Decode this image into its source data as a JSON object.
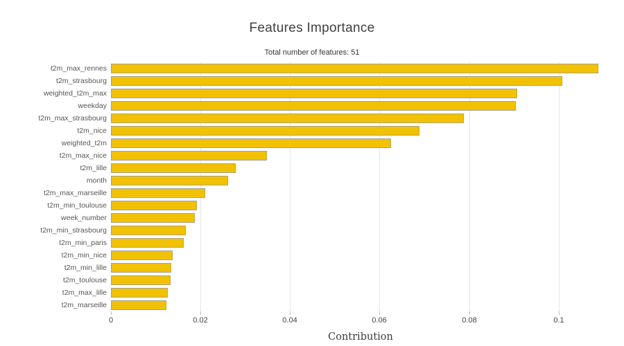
{
  "chart_data": {
    "type": "bar",
    "orientation": "horizontal",
    "title": "Features Importance",
    "subtitle": "Total number of features: 51",
    "xlabel": "Contribution",
    "ylabel": "",
    "categories": [
      "t2m_max_rennes",
      "t2m_strasbourg",
      "weighted_t2m_max",
      "weekday",
      "t2m_max_strasbourg",
      "t2m_nice",
      "weighted_t2m",
      "t2m_max_nice",
      "t2m_lille",
      "month",
      "t2m_max_marseille",
      "t2m_min_toulouse",
      "week_number",
      "t2m_min_strasbourg",
      "t2m_min_paris",
      "t2m_min_nice",
      "t2m_min_lille",
      "t2m_toulouse",
      "t2m_max_lille",
      "t2m_marseille"
    ],
    "values": [
      0.1088,
      0.1008,
      0.0908,
      0.0904,
      0.0789,
      0.0689,
      0.0625,
      0.0349,
      0.0278,
      0.0262,
      0.0211,
      0.0192,
      0.0188,
      0.0167,
      0.0162,
      0.0138,
      0.0135,
      0.0133,
      0.0127,
      0.0124
    ],
    "xlim": [
      0,
      0.1115
    ],
    "xticks": [
      0,
      0.02,
      0.04,
      0.06,
      0.08,
      0.1
    ],
    "xtick_labels": [
      "0",
      "0.02",
      "0.04",
      "0.06",
      "0.08",
      "0.1"
    ],
    "grid": "vertical-only",
    "legend": "none",
    "colors": {
      "bar_fill": "#F1C104",
      "bar_border": "#A9A192",
      "gridline": "#E7E7E7",
      "tick_mark": "#BDBDBD",
      "title_text": "#3F3F3F",
      "subtitle_text": "#333333",
      "xtick_text": "#444444",
      "category_text": "#555555",
      "axis_label_text": "#3B3B3B"
    }
  }
}
